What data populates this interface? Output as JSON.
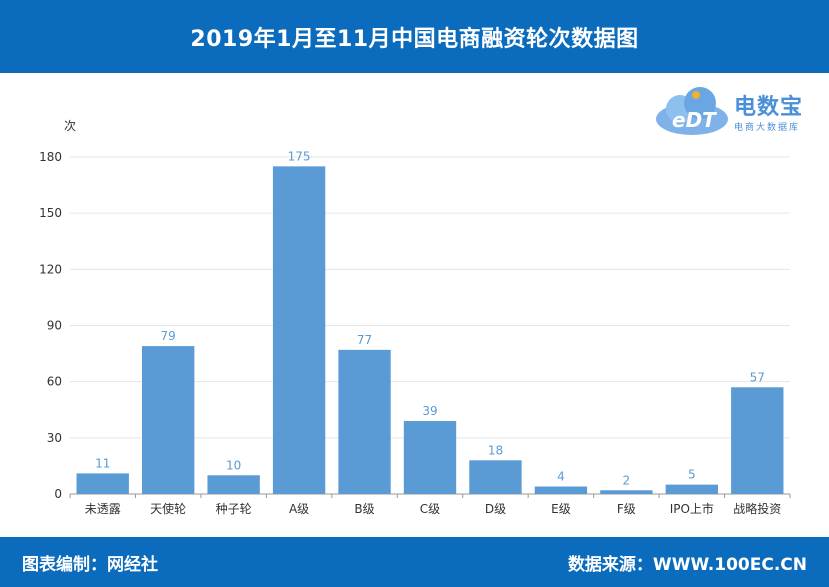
{
  "header": {
    "title": "2019年1月至11月中国电商融资轮次数据图"
  },
  "footer": {
    "credit": "图表编制：网经社",
    "source": "数据来源：WWW.100EC.CN"
  },
  "logo": {
    "name": "电数宝",
    "sub": "电商大数据库",
    "mark": "eDT"
  },
  "colors": {
    "header_bg": "#0b6bbd",
    "bar": "#5b9bd5",
    "value_label": "#5b9bd5",
    "logo": "#4a8fd8"
  },
  "chart_data": {
    "type": "bar",
    "title": "2019年1月至11月中国电商融资轮次数据图",
    "ylabel": "次",
    "xlabel": "",
    "ylim": [
      0,
      180
    ],
    "yticks": [
      0,
      30,
      60,
      90,
      120,
      150,
      180
    ],
    "grid": true,
    "categories": [
      "未透露",
      "天使轮",
      "种子轮",
      "A级",
      "B级",
      "C级",
      "D级",
      "E级",
      "F级",
      "IPO上市",
      "战略投资"
    ],
    "values": [
      11,
      79,
      10,
      175,
      77,
      39,
      18,
      4,
      2,
      5,
      57
    ]
  }
}
